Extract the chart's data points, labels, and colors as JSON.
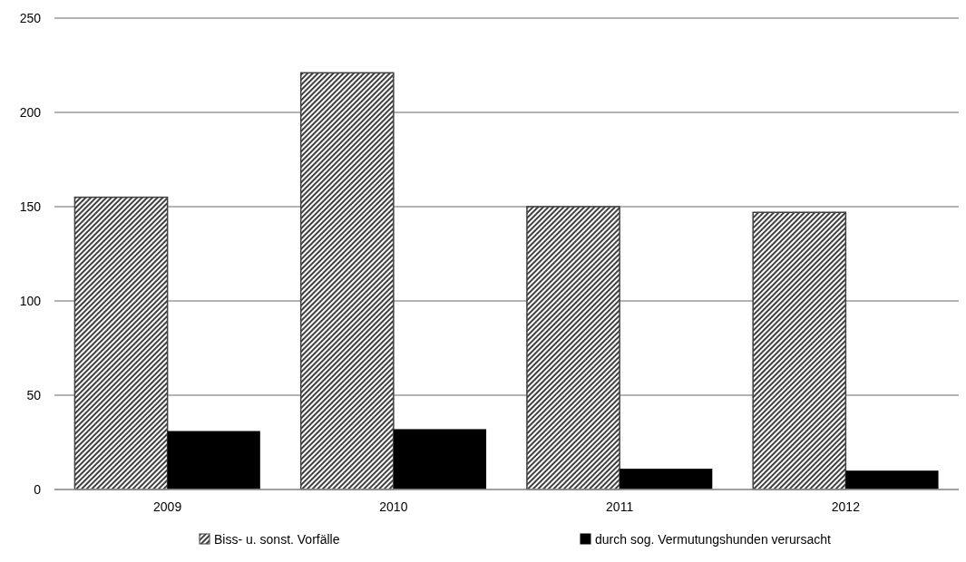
{
  "chart_data": {
    "type": "bar",
    "categories": [
      "2009",
      "2010",
      "2011",
      "2012"
    ],
    "series": [
      {
        "name": "Biss- u. sonst. Vorfälle",
        "color": "#404040",
        "values": [
          155,
          221,
          150,
          147
        ]
      },
      {
        "name": "durch sog. Vermutungshunden verursacht",
        "color": "#000000",
        "values": [
          31,
          32,
          11,
          10
        ]
      }
    ],
    "ylim": [
      0,
      250
    ],
    "yticks": [
      0,
      50,
      100,
      150,
      200,
      250
    ],
    "grid": "y",
    "legend": "bottom"
  }
}
